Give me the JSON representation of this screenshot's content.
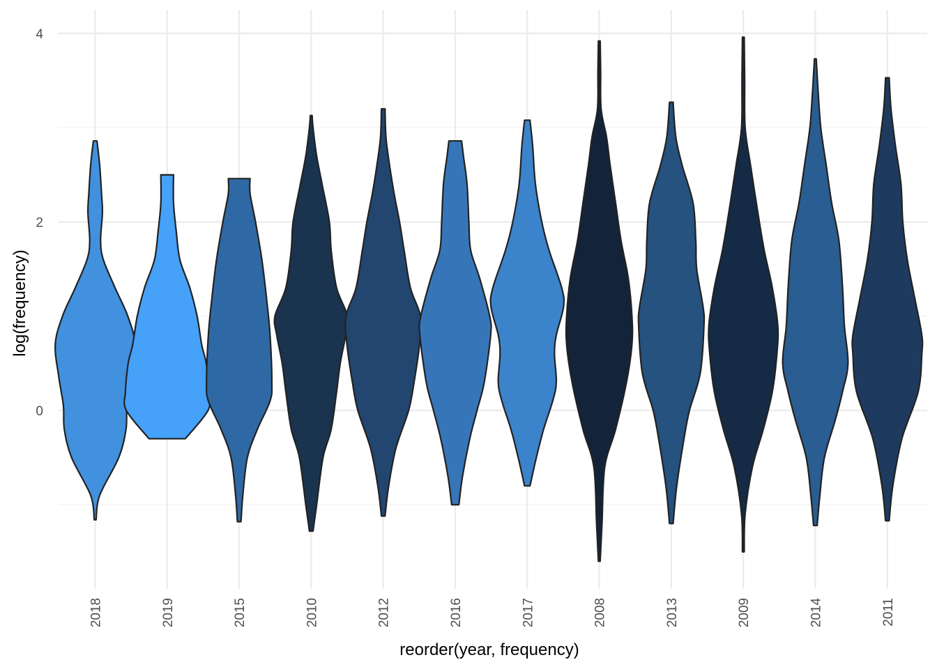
{
  "chart_data": {
    "type": "violin",
    "title": "",
    "xlabel": "reorder(year, frequency)",
    "ylabel": "log(frequency)",
    "ylim": [
      -1.9,
      4.2
    ],
    "y_ticks": [
      0,
      2,
      4
    ],
    "y_tick_labels": [
      "0",
      "2",
      "4"
    ],
    "y_minor_ticks": [
      -1,
      1,
      3
    ],
    "categories": [
      "2018",
      "2019",
      "2015",
      "2010",
      "2012",
      "2016",
      "2017",
      "2008",
      "2013",
      "2009",
      "2014",
      "2011"
    ],
    "fill_colors": [
      "#4191df",
      "#46a1f8",
      "#2f69a5",
      "#1a344f",
      "#22466f",
      "#3676b8",
      "#3b84cc",
      "#13243a",
      "#25527f",
      "#152a45",
      "#2a5d91",
      "#1e3b5f"
    ],
    "violins": [
      {
        "year": "2018",
        "min": -1.16,
        "max": 2.86,
        "profile": [
          [
            -1.16,
            0.01
          ],
          [
            -0.9,
            0.05
          ],
          [
            -0.5,
            0.26
          ],
          [
            -0.2,
            0.34
          ],
          [
            0.05,
            0.35
          ],
          [
            0.35,
            0.4
          ],
          [
            0.7,
            0.44
          ],
          [
            1.0,
            0.36
          ],
          [
            1.3,
            0.22
          ],
          [
            1.6,
            0.09
          ],
          [
            1.8,
            0.06
          ],
          [
            2.1,
            0.08
          ],
          [
            2.3,
            0.07
          ],
          [
            2.6,
            0.05
          ],
          [
            2.86,
            0.02
          ]
        ]
      },
      {
        "year": "2019",
        "min": -0.3,
        "max": 2.5,
        "profile": [
          [
            -0.3,
            0.2
          ],
          [
            0.0,
            0.45
          ],
          [
            0.2,
            0.46
          ],
          [
            0.5,
            0.43
          ],
          [
            0.7,
            0.38
          ],
          [
            1.0,
            0.33
          ],
          [
            1.3,
            0.25
          ],
          [
            1.6,
            0.14
          ],
          [
            1.9,
            0.1
          ],
          [
            2.2,
            0.07
          ],
          [
            2.5,
            0.07
          ]
        ]
      },
      {
        "year": "2015",
        "min": -1.18,
        "max": 2.46,
        "profile": [
          [
            -1.18,
            0.02
          ],
          [
            -0.9,
            0.04
          ],
          [
            -0.5,
            0.09
          ],
          [
            -0.2,
            0.2
          ],
          [
            0.1,
            0.34
          ],
          [
            0.3,
            0.36
          ],
          [
            0.8,
            0.34
          ],
          [
            1.2,
            0.3
          ],
          [
            1.6,
            0.25
          ],
          [
            2.0,
            0.18
          ],
          [
            2.3,
            0.12
          ],
          [
            2.46,
            0.12
          ]
        ]
      },
      {
        "year": "2010",
        "min": -1.28,
        "max": 3.13,
        "profile": [
          [
            -1.28,
            0.02
          ],
          [
            -1.0,
            0.06
          ],
          [
            -0.5,
            0.13
          ],
          [
            -0.2,
            0.22
          ],
          [
            0.2,
            0.28
          ],
          [
            0.5,
            0.32
          ],
          [
            0.8,
            0.38
          ],
          [
            1.0,
            0.4
          ],
          [
            1.3,
            0.28
          ],
          [
            1.7,
            0.22
          ],
          [
            2.0,
            0.2
          ],
          [
            2.4,
            0.12
          ],
          [
            2.7,
            0.06
          ],
          [
            3.0,
            0.02
          ],
          [
            3.13,
            0.01
          ]
        ]
      },
      {
        "year": "2012",
        "min": -1.12,
        "max": 3.2,
        "profile": [
          [
            -1.12,
            0.02
          ],
          [
            -0.8,
            0.06
          ],
          [
            -0.4,
            0.14
          ],
          [
            0.0,
            0.28
          ],
          [
            0.3,
            0.34
          ],
          [
            0.7,
            0.4
          ],
          [
            1.0,
            0.41
          ],
          [
            1.3,
            0.3
          ],
          [
            1.7,
            0.23
          ],
          [
            2.0,
            0.18
          ],
          [
            2.3,
            0.12
          ],
          [
            2.6,
            0.07
          ],
          [
            2.9,
            0.03
          ],
          [
            3.2,
            0.02
          ]
        ]
      },
      {
        "year": "2016",
        "min": -1.0,
        "max": 2.86,
        "profile": [
          [
            -1.0,
            0.04
          ],
          [
            -0.7,
            0.08
          ],
          [
            -0.3,
            0.16
          ],
          [
            0.0,
            0.24
          ],
          [
            0.3,
            0.32
          ],
          [
            0.8,
            0.39
          ],
          [
            1.0,
            0.38
          ],
          [
            1.4,
            0.27
          ],
          [
            1.7,
            0.17
          ],
          [
            2.0,
            0.15
          ],
          [
            2.4,
            0.13
          ],
          [
            2.7,
            0.09
          ],
          [
            2.86,
            0.07
          ]
        ]
      },
      {
        "year": "2017",
        "min": -0.8,
        "max": 3.08,
        "profile": [
          [
            -0.8,
            0.03
          ],
          [
            -0.5,
            0.1
          ],
          [
            -0.2,
            0.18
          ],
          [
            0.1,
            0.28
          ],
          [
            0.3,
            0.32
          ],
          [
            0.6,
            0.3
          ],
          [
            0.8,
            0.32
          ],
          [
            1.1,
            0.4
          ],
          [
            1.3,
            0.38
          ],
          [
            1.7,
            0.24
          ],
          [
            2.0,
            0.16
          ],
          [
            2.4,
            0.09
          ],
          [
            2.8,
            0.06
          ],
          [
            3.08,
            0.03
          ]
        ]
      },
      {
        "year": "2008",
        "min": -1.6,
        "max": 3.92,
        "profile": [
          [
            -1.6,
            0.01
          ],
          [
            -1.2,
            0.03
          ],
          [
            -0.6,
            0.06
          ],
          [
            -0.2,
            0.18
          ],
          [
            0.3,
            0.3
          ],
          [
            0.7,
            0.36
          ],
          [
            1.0,
            0.36
          ],
          [
            1.4,
            0.32
          ],
          [
            1.8,
            0.24
          ],
          [
            2.2,
            0.18
          ],
          [
            2.6,
            0.12
          ],
          [
            2.9,
            0.08
          ],
          [
            3.2,
            0.02
          ],
          [
            3.6,
            0.015
          ],
          [
            3.92,
            0.01
          ]
        ]
      },
      {
        "year": "2013",
        "min": -1.2,
        "max": 3.27,
        "profile": [
          [
            -1.2,
            0.02
          ],
          [
            -0.8,
            0.06
          ],
          [
            -0.3,
            0.14
          ],
          [
            0.0,
            0.2
          ],
          [
            0.4,
            0.32
          ],
          [
            0.9,
            0.36
          ],
          [
            1.1,
            0.35
          ],
          [
            1.5,
            0.28
          ],
          [
            1.8,
            0.27
          ],
          [
            2.2,
            0.24
          ],
          [
            2.6,
            0.12
          ],
          [
            2.9,
            0.05
          ],
          [
            3.27,
            0.02
          ]
        ]
      },
      {
        "year": "2009",
        "min": -1.5,
        "max": 3.96,
        "profile": [
          [
            -1.5,
            0.01
          ],
          [
            -1.1,
            0.02
          ],
          [
            -0.6,
            0.1
          ],
          [
            -0.2,
            0.22
          ],
          [
            0.2,
            0.32
          ],
          [
            0.6,
            0.37
          ],
          [
            0.9,
            0.38
          ],
          [
            1.3,
            0.32
          ],
          [
            1.7,
            0.23
          ],
          [
            2.1,
            0.16
          ],
          [
            2.6,
            0.08
          ],
          [
            3.0,
            0.02
          ],
          [
            3.5,
            0.015
          ],
          [
            3.96,
            0.01
          ]
        ]
      },
      {
        "year": "2014",
        "min": -1.22,
        "max": 3.73,
        "profile": [
          [
            -1.22,
            0.02
          ],
          [
            -0.9,
            0.05
          ],
          [
            -0.5,
            0.1
          ],
          [
            -0.1,
            0.22
          ],
          [
            0.2,
            0.3
          ],
          [
            0.5,
            0.36
          ],
          [
            0.9,
            0.32
          ],
          [
            1.3,
            0.3
          ],
          [
            1.8,
            0.26
          ],
          [
            2.2,
            0.18
          ],
          [
            2.6,
            0.12
          ],
          [
            3.0,
            0.06
          ],
          [
            3.4,
            0.03
          ],
          [
            3.73,
            0.01
          ]
        ]
      },
      {
        "year": "2011",
        "min": -1.17,
        "max": 3.53,
        "profile": [
          [
            -1.17,
            0.02
          ],
          [
            -0.8,
            0.06
          ],
          [
            -0.3,
            0.16
          ],
          [
            0.2,
            0.34
          ],
          [
            0.6,
            0.38
          ],
          [
            0.8,
            0.38
          ],
          [
            1.2,
            0.3
          ],
          [
            1.6,
            0.22
          ],
          [
            2.0,
            0.17
          ],
          [
            2.4,
            0.15
          ],
          [
            2.8,
            0.09
          ],
          [
            3.2,
            0.04
          ],
          [
            3.53,
            0.02
          ]
        ]
      }
    ]
  }
}
